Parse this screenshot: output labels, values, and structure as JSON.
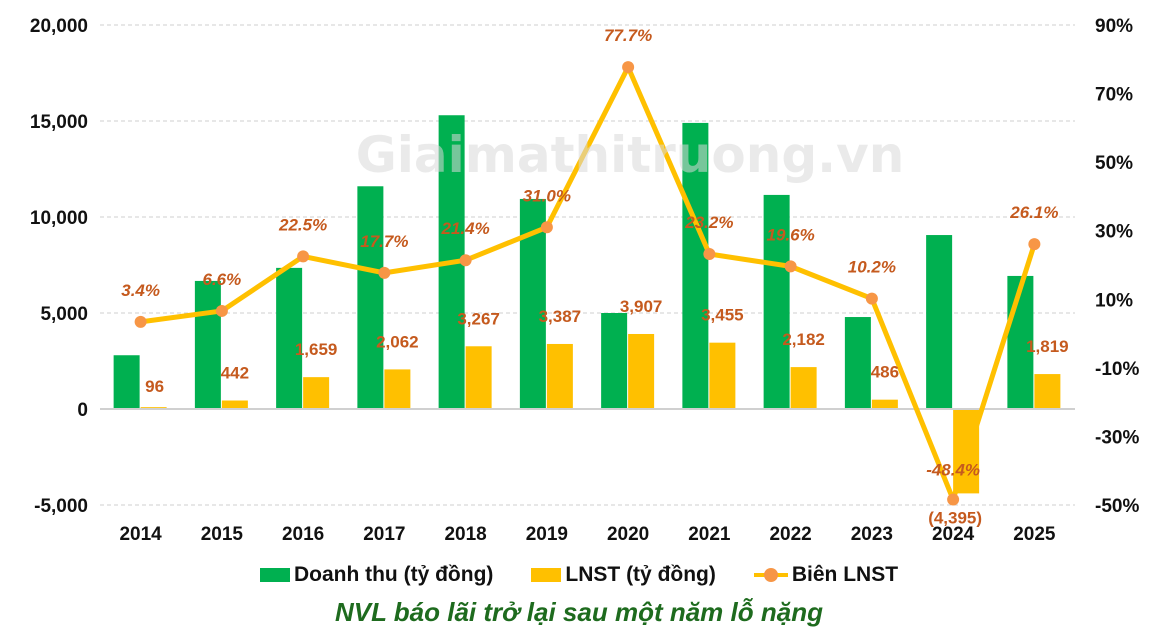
{
  "chart_data": {
    "type": "bar",
    "title": "NVL báo lãi trở lại sau một năm lỗ nặng",
    "watermark": "Giaimathitruong.vn",
    "categories": [
      "2014",
      "2015",
      "2016",
      "2017",
      "2018",
      "2019",
      "2020",
      "2021",
      "2022",
      "2023",
      "2024",
      "2025"
    ],
    "series": [
      {
        "name": "Doanh thu (tỷ đồng)",
        "type": "bar",
        "axis": "left",
        "color": "#00b050",
        "values": [
          2800,
          6670,
          7350,
          11600,
          15300,
          10940,
          5000,
          14900,
          11150,
          4790,
          9060,
          6930
        ]
      },
      {
        "name": "LNST (tỷ đồng)",
        "type": "bar",
        "axis": "left",
        "color": "#ffc000",
        "values": [
          96,
          442,
          1659,
          2062,
          3267,
          3387,
          3907,
          3455,
          2182,
          486,
          -4395,
          1819
        ],
        "labels": [
          "96",
          "442",
          "1,659",
          "2,062",
          "3,267",
          "3,387",
          "3,907",
          "3,455",
          "2,182",
          "486",
          "(4,395)",
          "1,819"
        ]
      },
      {
        "name": "Biên LNST",
        "type": "line",
        "axis": "right",
        "color": "#ffc000",
        "marker_color": "#f79646",
        "values": [
          3.4,
          6.6,
          22.5,
          17.7,
          21.4,
          31.0,
          77.7,
          23.2,
          19.6,
          10.2,
          -48.4,
          26.1
        ],
        "labels": [
          "3.4%",
          "6.6%",
          "22.5%",
          "17.7%",
          "21.4%",
          "31.0%",
          "77.7%",
          "23.2%",
          "19.6%",
          "10.2%",
          "-48.4%",
          "26.1%"
        ]
      }
    ],
    "y_left": {
      "ylim": [
        -5000,
        20000
      ],
      "ticks": [
        20000,
        15000,
        10000,
        5000,
        0,
        -5000
      ],
      "tick_labels": [
        "20,000",
        "15,000",
        "10,000",
        "5,000",
        "0",
        "-5,000"
      ]
    },
    "y_right": {
      "ylim": [
        -50,
        90
      ],
      "ticks": [
        90,
        70,
        50,
        30,
        10,
        -10,
        -30,
        -50
      ],
      "tick_labels": [
        "90%",
        "70%",
        "50%",
        "30%",
        "10%",
        "-10%",
        "-30%",
        "-50%"
      ]
    },
    "grid": true,
    "legend_position": "bottom",
    "data_label_color": "#c55a1e"
  },
  "legend": {
    "items": [
      {
        "label": "Doanh thu (tỷ đồng)"
      },
      {
        "label": "LNST (tỷ đồng)"
      },
      {
        "label": "Biên LNST"
      }
    ]
  },
  "caption": "NVL báo lãi trở lại sau một năm lỗ nặng"
}
